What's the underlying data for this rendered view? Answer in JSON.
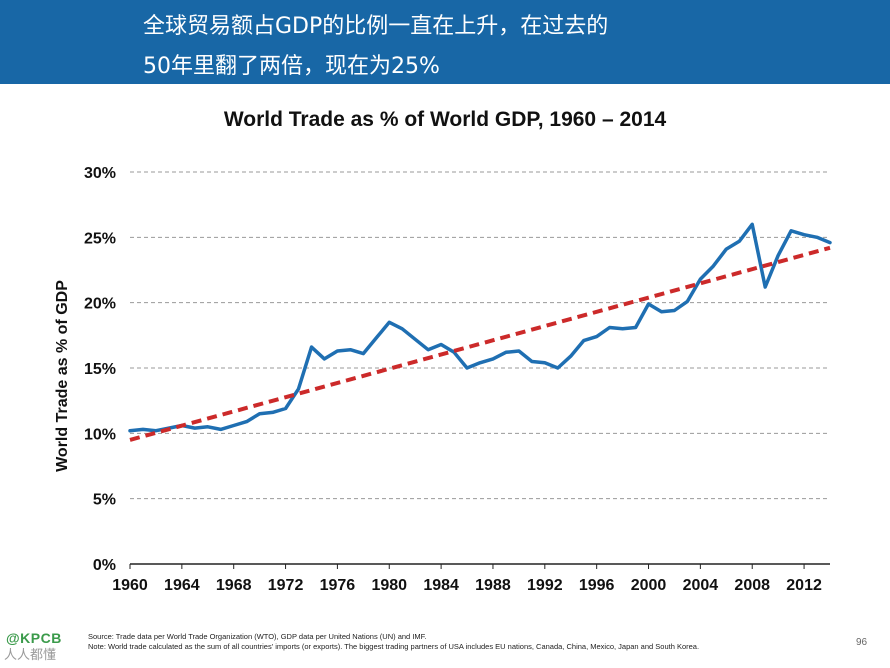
{
  "header": {
    "line1": "全球贸易额占GDP的比例一直在上升，在过去的",
    "line2": "50年里翻了两倍，现在为25%"
  },
  "chart_data": {
    "type": "line",
    "title": "World Trade as % of World GDP, 1960 – 2014",
    "ylabel": "World Trade as % of GDP",
    "xlabel": "",
    "xlim": [
      1960,
      2014
    ],
    "ylim": [
      0,
      30
    ],
    "x_ticks": [
      "1960",
      "1964",
      "1968",
      "1972",
      "1976",
      "1980",
      "1984",
      "1988",
      "1992",
      "1996",
      "2000",
      "2004",
      "2008",
      "2012"
    ],
    "y_ticks": [
      "0%",
      "5%",
      "10%",
      "15%",
      "20%",
      "25%",
      "30%"
    ],
    "grid": "horizontal dashed",
    "series": [
      {
        "color": "#1f6fb2",
        "x": [
          1960,
          1961,
          1962,
          1963,
          1964,
          1965,
          1966,
          1967,
          1968,
          1969,
          1970,
          1971,
          1972,
          1973,
          1974,
          1975,
          1976,
          1977,
          1978,
          1979,
          1980,
          1981,
          1982,
          1983,
          1984,
          1985,
          1986,
          1987,
          1988,
          1989,
          1990,
          1991,
          1992,
          1993,
          1994,
          1995,
          1996,
          1997,
          1998,
          1999,
          2000,
          2001,
          2002,
          2003,
          2004,
          2005,
          2006,
          2007,
          2008,
          2009,
          2010,
          2011,
          2012,
          2013,
          2014
        ],
        "values": [
          10.2,
          10.3,
          10.2,
          10.4,
          10.6,
          10.4,
          10.5,
          10.3,
          10.6,
          10.9,
          11.5,
          11.6,
          11.9,
          13.4,
          16.6,
          15.7,
          16.3,
          16.4,
          16.1,
          17.3,
          18.5,
          18.0,
          17.2,
          16.4,
          16.8,
          16.2,
          15.0,
          15.4,
          15.7,
          16.2,
          16.3,
          15.5,
          15.4,
          15.0,
          15.9,
          17.1,
          17.4,
          18.1,
          18.0,
          18.1,
          19.9,
          19.3,
          19.4,
          20.1,
          21.8,
          22.8,
          24.1,
          24.7,
          26.0,
          21.2,
          23.6,
          25.5,
          25.2,
          25.0,
          24.6
        ]
      },
      {
        "color": "#cc2a2a",
        "style": "dashed",
        "x": [
          1960,
          2014
        ],
        "values": [
          9.5,
          24.2
        ]
      }
    ]
  },
  "footnote": {
    "source": "Source: Trade data per World Trade Organization (WTO), GDP data per United Nations (UN) and IMF.",
    "note": "Note: World trade calculated as the sum of all countries' imports (or exports). The biggest trading partners of USA includes EU nations, Canada, China, Mexico, Japan and South Korea."
  },
  "page_number": "96",
  "brand": {
    "logo_text": "@KPCB",
    "watermark": "人人都懂"
  }
}
